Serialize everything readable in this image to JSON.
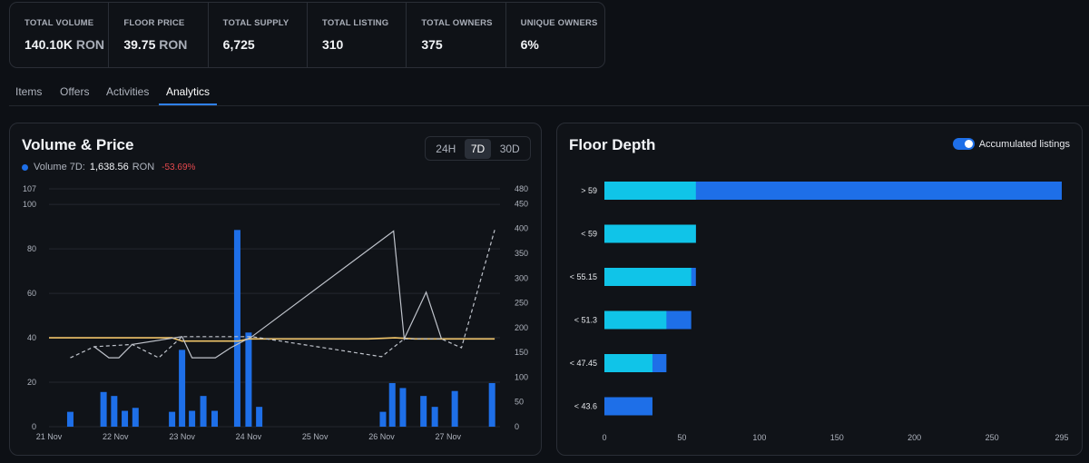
{
  "stats": [
    {
      "label": "TOTAL VOLUME",
      "value": "140.10K",
      "unit": "RON"
    },
    {
      "label": "FLOOR PRICE",
      "value": "39.75",
      "unit": "RON"
    },
    {
      "label": "TOTAL SUPPLY",
      "value": "6,725",
      "unit": ""
    },
    {
      "label": "TOTAL LISTING",
      "value": "310",
      "unit": ""
    },
    {
      "label": "TOTAL OWNERS",
      "value": "375",
      "unit": ""
    },
    {
      "label": "UNIQUE OWNERS",
      "value": "6%",
      "unit": ""
    }
  ],
  "tabs": [
    "Items",
    "Offers",
    "Activities",
    "Analytics"
  ],
  "active_tab": "Analytics",
  "volume_card": {
    "title": "Volume & Price",
    "ranges": [
      "24H",
      "7D",
      "30D"
    ],
    "selected_range": "7D",
    "legend_label": "Volume 7D:",
    "legend_value": "1,638.56",
    "legend_unit": "RON",
    "legend_change": "-53.69%"
  },
  "depth_card": {
    "title": "Floor Depth",
    "toggle_label": "Accumulated listings",
    "toggle_on": true
  },
  "colors": {
    "volume_bar": "#1e6fe8",
    "floor_line": "#f1c56a",
    "avg_price_line": "#bfc3cb",
    "depth_own": "#10c4e8",
    "depth_accum": "#1e6fe8",
    "negative": "#e5484d"
  },
  "chart_data": [
    {
      "type": "bar",
      "title": "Volume & Price",
      "x_labels": [
        "21 Nov",
        "22 Nov",
        "23 Nov",
        "24 Nov",
        "25 Nov",
        "26 Nov",
        "27 Nov"
      ],
      "y_left_ticks": [
        0,
        20,
        40,
        60,
        80,
        100,
        107
      ],
      "y_left_range": [
        0,
        107
      ],
      "y_right_ticks": [
        0,
        50,
        100,
        150,
        200,
        250,
        300,
        350,
        400,
        450,
        480
      ],
      "y_right_range": [
        0,
        480
      ],
      "series": [
        {
          "name": "Volume",
          "type": "bar",
          "axis": "right",
          "points": [
            [
              0.32,
              30
            ],
            [
              0.82,
              70
            ],
            [
              0.98,
              62
            ],
            [
              1.14,
              32
            ],
            [
              1.3,
              38
            ],
            [
              1.85,
              30
            ],
            [
              2.0,
              155
            ],
            [
              2.15,
              32
            ],
            [
              2.32,
              62
            ],
            [
              2.49,
              32
            ],
            [
              2.83,
              397
            ],
            [
              3.0,
              190
            ],
            [
              3.16,
              40
            ],
            [
              5.02,
              30
            ],
            [
              5.16,
              88
            ],
            [
              5.32,
              78
            ],
            [
              5.63,
              62
            ],
            [
              5.8,
              40
            ],
            [
              6.1,
              72
            ],
            [
              6.66,
              88
            ]
          ]
        },
        {
          "name": "Floor price",
          "type": "line",
          "axis": "left",
          "points": [
            [
              0.0,
              40
            ],
            [
              1.85,
              40
            ],
            [
              2.0,
              38.5
            ],
            [
              2.85,
              38.5
            ],
            [
              3.0,
              39.5
            ],
            [
              3.5,
              39.5
            ],
            [
              4.8,
              39.5
            ],
            [
              5.2,
              40
            ],
            [
              5.5,
              39.5
            ],
            [
              6.7,
              39.5
            ]
          ]
        },
        {
          "name": "Average price (solid)",
          "type": "line",
          "axis": "left",
          "points": [
            [
              0.68,
              36
            ],
            [
              0.9,
              31
            ],
            [
              1.05,
              31
            ],
            [
              1.25,
              37
            ],
            [
              2.0,
              40.5
            ],
            [
              2.15,
              31
            ],
            [
              2.5,
              31
            ],
            [
              2.73,
              35.5
            ],
            [
              3.05,
              40.5
            ],
            [
              5.18,
              88
            ],
            [
              5.34,
              39.5
            ],
            [
              5.67,
              60.5
            ],
            [
              5.9,
              39.5
            ]
          ]
        },
        {
          "name": "Average price (gap)",
          "type": "line",
          "dashed": true,
          "axis": "left",
          "points": [
            [
              0.32,
              31
            ],
            [
              0.68,
              36
            ],
            [
              1.25,
              37
            ],
            [
              1.65,
              31
            ],
            [
              2.0,
              40.5
            ],
            [
              3.05,
              40.5
            ],
            [
              5.0,
              31.5
            ],
            [
              5.34,
              39.5
            ],
            [
              5.9,
              39.5
            ],
            [
              6.2,
              35.5
            ],
            [
              6.7,
              88.5
            ]
          ]
        }
      ]
    },
    {
      "type": "bar",
      "orientation": "horizontal",
      "title": "Floor Depth",
      "categories": [
        "> 59",
        "< 59",
        "< 55.15",
        "< 51.3",
        "< 47.45",
        "< 43.6"
      ],
      "x_ticks": [
        0,
        50,
        100,
        150,
        200,
        250,
        295
      ],
      "x_range": [
        0,
        295
      ],
      "series": [
        {
          "name": "Listings",
          "values": [
            59,
            59,
            56,
            40,
            31,
            0
          ]
        },
        {
          "name": "Accumulated listings",
          "values": [
            295,
            59,
            59,
            56,
            40,
            31
          ]
        }
      ]
    }
  ]
}
